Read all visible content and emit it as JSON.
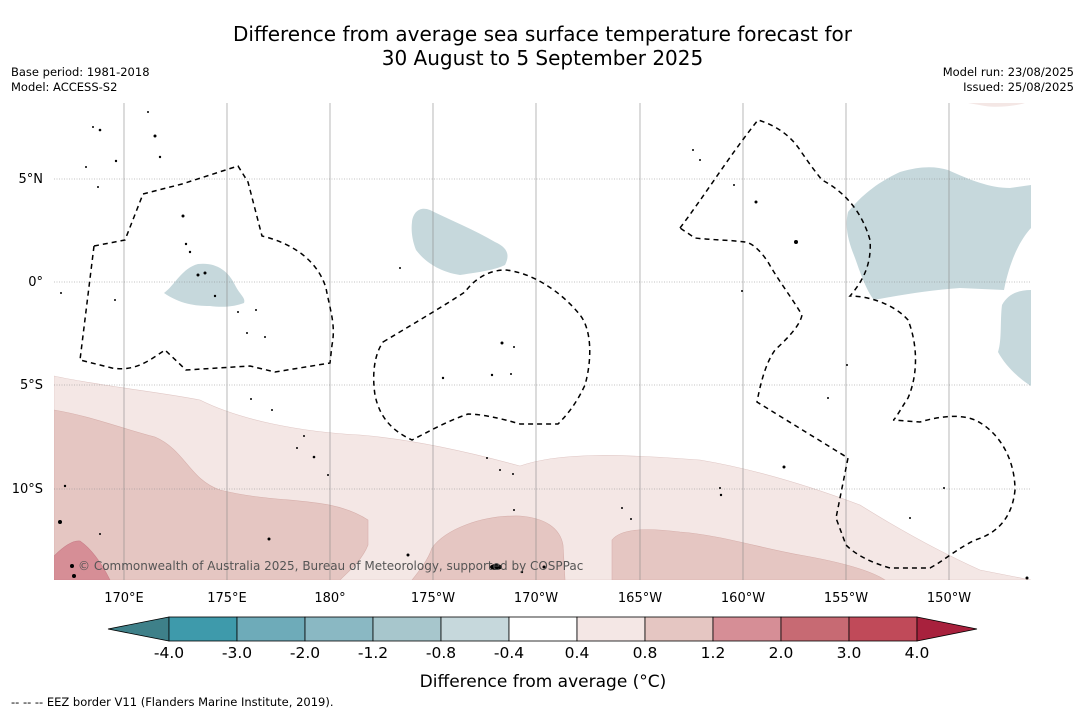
{
  "title": {
    "line1": "Difference from average sea surface temperature forecast for",
    "line2": "30 August to 5 September 2025"
  },
  "meta_left": {
    "base_period": "Base period: 1981-2018",
    "model": "Model: ACCESS-S2"
  },
  "meta_right": {
    "model_run": "Model run: 23/08/2025",
    "issued": "Issued: 25/08/2025"
  },
  "map": {
    "lat_labels": [
      "5°N",
      "0°",
      "5°S",
      "10°S"
    ],
    "lon_labels": [
      "170°E",
      "175°E",
      "180°",
      "175°W",
      "170°W",
      "165°W",
      "160°W",
      "155°W",
      "150°W"
    ],
    "copyright": "© Commonwealth of Australia 2025, Bureau of Meteorology, supported by COSPPac",
    "colors": {
      "cool_1": "#c6d8dc",
      "warm_1": "#f4e7e5",
      "warm_2": "#e5c6c2",
      "warm_3": "#d68e96"
    }
  },
  "colorbar": {
    "ticks": [
      "-4.0",
      "-3.0",
      "-2.0",
      "-1.2",
      "-0.8",
      "-0.4",
      "0.4",
      "0.8",
      "1.2",
      "2.0",
      "3.0",
      "4.0"
    ],
    "colors": [
      "#3e9aab",
      "#6eabb9",
      "#8ab8c3",
      "#a7c6cc",
      "#c6d8dc",
      "#ffffff",
      "#f4e7e5",
      "#e5c6c2",
      "#d68e96",
      "#c76a73",
      "#c04a59"
    ],
    "under_color": "#3e8089",
    "over_color": "#a8213d",
    "label": "Difference from average (°C)"
  },
  "footnote": "--  --  -- EEZ border V11 (Flanders Marine Institute, 2019)."
}
